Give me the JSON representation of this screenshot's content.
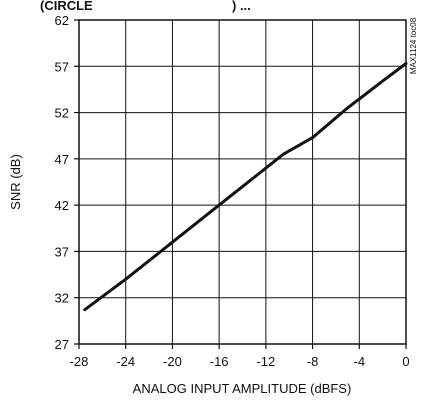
{
  "header": {
    "fragment_left": "(CIRCLE",
    "fragment_right": ") ...",
    "side_label": "MAX1124 toc08"
  },
  "chart_data": {
    "type": "line",
    "title": "",
    "xlabel": "ANALOG INPUT AMPLITUDE (dBFS)",
    "ylabel": "SNR (dB)",
    "xlim": [
      -28,
      0
    ],
    "ylim": [
      27,
      62
    ],
    "xticks": [
      -28,
      -24,
      -20,
      -16,
      -12,
      -8,
      -4,
      0
    ],
    "yticks": [
      27,
      32,
      37,
      42,
      47,
      52,
      57,
      62
    ],
    "xtick_labels": [
      "-28",
      "-24",
      "-20",
      "-16",
      "-12",
      "-8",
      "-4",
      "0"
    ],
    "ytick_labels": [
      "27",
      "32",
      "37",
      "42",
      "47",
      "52",
      "57",
      "62"
    ],
    "grid": true,
    "series": [
      {
        "x": [
          -27.5,
          -24,
          -20,
          -16,
          -12,
          -10.5,
          -8,
          -5,
          -2,
          0
        ],
        "y": [
          30.7,
          34.0,
          38.0,
          42.0,
          46.0,
          47.5,
          49.3,
          52.5,
          55.4,
          57.3
        ],
        "color": "#111111"
      }
    ]
  }
}
